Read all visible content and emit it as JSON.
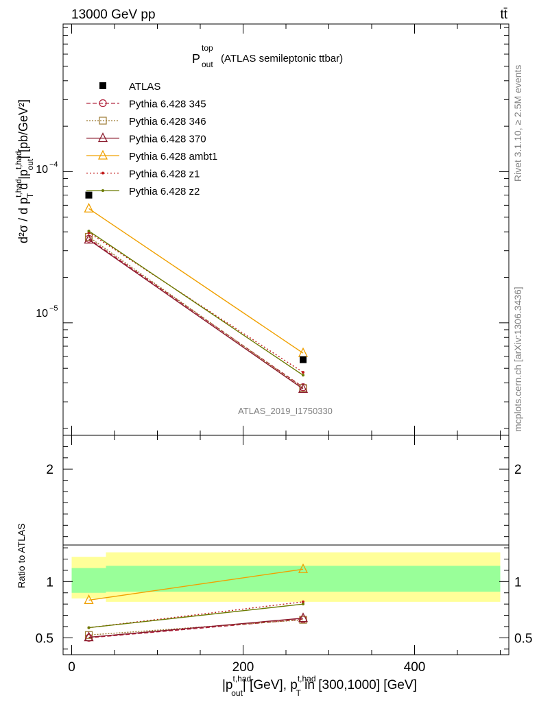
{
  "header": {
    "energy_label": "13000 GeV pp",
    "process_label": "tt̄"
  },
  "side_labels": {
    "rivet": "Rivet 3.1.10, ≥ 2.5M events",
    "mcplots": "mcplots.cern.ch [arXiv:1306.3436]"
  },
  "chart_data": [
    {
      "type": "line",
      "panel": "main",
      "title_main": "P",
      "title_sup": "top",
      "title_sub": "out",
      "title_rest": "(ATLAS semileptonic ttbar)",
      "ylabel": "d²σ / d p_T^{t,had} d |p_out^{t,had}| [pb/GeV²]",
      "ylog": true,
      "ylim": [
        1.8e-06,
        0.00095
      ],
      "y_tick_labels": [
        "10^-5",
        "10^-4"
      ],
      "watermark": "ATLAS_2019_I1750330",
      "legend_position": "top-left",
      "x": [
        20,
        270
      ],
      "data": {
        "name": "ATLAS",
        "values": [
          7e-05,
          5.7e-06
        ]
      },
      "series": [
        {
          "name": "Pythia 6.428 345",
          "values": [
            3.6e-05,
            3.75e-06
          ],
          "color": "#b0203a",
          "marker": "circle",
          "dash": "6,3"
        },
        {
          "name": "Pythia 6.428 346",
          "values": [
            3.7e-05,
            3.7e-06
          ],
          "color": "#9c7a32",
          "marker": "square",
          "dash": "2,2"
        },
        {
          "name": "Pythia 6.428 370",
          "values": [
            3.55e-05,
            3.65e-06
          ],
          "color": "#8a1a2c",
          "marker": "triangle",
          "dash": ""
        },
        {
          "name": "Pythia 6.428 ambt1",
          "values": [
            5.7e-05,
            6.3e-06
          ],
          "color": "#f0a000",
          "marker": "triangle",
          "dash": ""
        },
        {
          "name": "Pythia 6.428 z1",
          "values": [
            3.95e-05,
            4.7e-06
          ],
          "color": "#c01818",
          "marker": "dot",
          "dash": "2,3"
        },
        {
          "name": "Pythia 6.428 z2",
          "values": [
            4.05e-05,
            4.5e-06
          ],
          "color": "#6b7a00",
          "marker": "dot",
          "dash": ""
        }
      ]
    },
    {
      "type": "line",
      "panel": "ratio",
      "ylabel": "Ratio to ATLAS",
      "ylim": [
        0.35,
        2.3
      ],
      "xlim": [
        -10,
        510
      ],
      "x_tick_labels": [
        0,
        200,
        400
      ],
      "y_tick_labels": [
        0.5,
        1,
        2
      ],
      "xlabel_parts": [
        "|p",
        "t,had",
        "out",
        "| [GeV], p",
        "t,had",
        "T",
        " in [300,1000] [GeV]"
      ],
      "bands": [
        {
          "x": [
            0,
            40
          ],
          "inner": [
            0.9,
            1.12
          ],
          "outer": [
            0.85,
            1.22
          ]
        },
        {
          "x": [
            40,
            500
          ],
          "inner": [
            0.91,
            1.14
          ],
          "outer": [
            0.82,
            1.26
          ]
        }
      ],
      "band_colors": {
        "inner": "#99ff99",
        "outer": "#ffff99"
      },
      "x": [
        20,
        270
      ],
      "series": [
        {
          "name": "Pythia 6.428 345",
          "values": [
            0.5,
            0.665
          ]
        },
        {
          "name": "Pythia 6.428 346",
          "values": [
            0.525,
            0.66
          ]
        },
        {
          "name": "Pythia 6.428 370",
          "values": [
            0.505,
            0.675
          ]
        },
        {
          "name": "Pythia 6.428 ambt1",
          "values": [
            0.835,
            1.11
          ]
        },
        {
          "name": "Pythia 6.428 z1",
          "values": [
            0.59,
            0.82
          ]
        },
        {
          "name": "Pythia 6.428 z2",
          "values": [
            0.59,
            0.8
          ]
        }
      ]
    }
  ]
}
